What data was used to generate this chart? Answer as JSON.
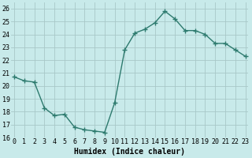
{
  "x": [
    0,
    1,
    2,
    3,
    4,
    5,
    6,
    7,
    8,
    9,
    10,
    11,
    12,
    13,
    14,
    15,
    16,
    17,
    18,
    19,
    20,
    21,
    22,
    23
  ],
  "y": [
    20.7,
    20.4,
    20.3,
    18.3,
    17.7,
    17.8,
    16.8,
    16.6,
    16.5,
    16.4,
    18.7,
    22.8,
    24.1,
    24.4,
    24.9,
    25.8,
    25.2,
    24.3,
    24.3,
    24.0,
    23.3,
    23.3,
    22.8,
    22.3
  ],
  "line_color": "#2d7a6e",
  "marker": "+",
  "marker_size": 4,
  "bg_color": "#c8eaea",
  "grid_color": "#a8c8c8",
  "xlabel": "Humidex (Indice chaleur)",
  "ylim": [
    16,
    26.5
  ],
  "yticks": [
    16,
    17,
    18,
    19,
    20,
    21,
    22,
    23,
    24,
    25,
    26
  ],
  "xticks": [
    0,
    1,
    2,
    3,
    4,
    5,
    6,
    7,
    8,
    9,
    10,
    11,
    12,
    13,
    14,
    15,
    16,
    17,
    18,
    19,
    20,
    21,
    22,
    23
  ],
  "xlim": [
    -0.3,
    23.3
  ],
  "tick_fontsize": 6,
  "xlabel_fontsize": 7,
  "linewidth": 1.0
}
